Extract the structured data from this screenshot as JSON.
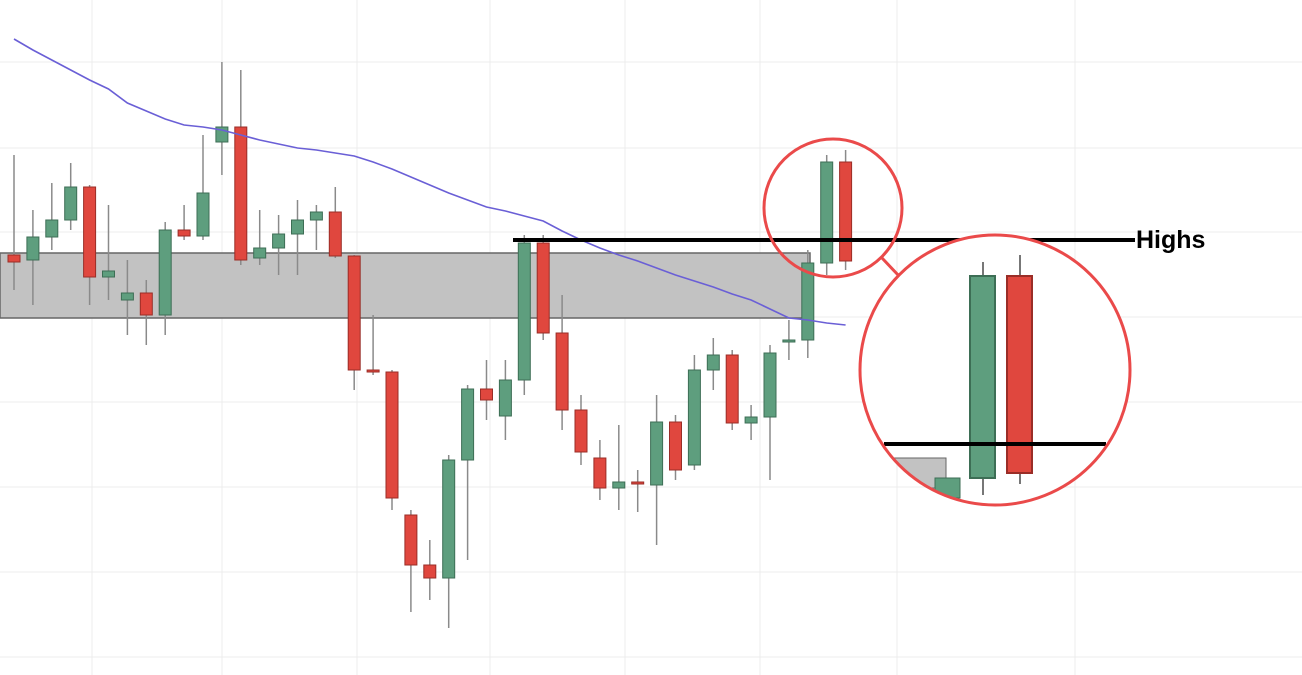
{
  "chart_data": {
    "type": "candlestick",
    "ylim": [
      0,
      675
    ],
    "up_color": "#5e9e7e",
    "down_color": "#e0473e",
    "candles": {
      "open": [
        420,
        415,
        438,
        455,
        488,
        398,
        375,
        382,
        360,
        445,
        439,
        533,
        548,
        417,
        427,
        441,
        455,
        463,
        419,
        305,
        303,
        160,
        110,
        97,
        215,
        286,
        259,
        295,
        432,
        342,
        265,
        217,
        187,
        193,
        190,
        253,
        210,
        305,
        320,
        252,
        258,
        333,
        335,
        412,
        513
      ],
      "high": [
        520,
        465,
        492,
        512,
        490,
        470,
        415,
        395,
        453,
        470,
        540,
        613,
        605,
        465,
        460,
        475,
        470,
        488,
        420,
        360,
        305,
        165,
        135,
        220,
        290,
        315,
        315,
        440,
        440,
        380,
        280,
        235,
        250,
        205,
        280,
        260,
        320,
        337,
        325,
        270,
        330,
        355,
        425,
        520,
        525
      ],
      "low": [
        385,
        370,
        425,
        445,
        370,
        375,
        340,
        330,
        340,
        435,
        435,
        500,
        410,
        410,
        400,
        400,
        425,
        417,
        285,
        300,
        165,
        63,
        75,
        47,
        115,
        255,
        235,
        280,
        335,
        245,
        210,
        175,
        165,
        163,
        130,
        195,
        205,
        285,
        245,
        235,
        195,
        315,
        317,
        400,
        405
      ],
      "close": [
        413,
        438,
        455,
        488,
        398,
        404,
        382,
        360,
        445,
        439,
        482,
        548,
        415,
        427,
        441,
        455,
        463,
        419,
        305,
        303,
        177,
        110,
        97,
        215,
        286,
        275,
        295,
        432,
        342,
        265,
        223,
        187,
        193,
        191,
        253,
        205,
        305,
        320,
        252,
        258,
        322,
        335,
        412,
        513,
        414
      ]
    },
    "moving_average": {
      "color": "#6a5fd6",
      "values": [
        636,
        625,
        615,
        605,
        595,
        586,
        572,
        564,
        556,
        550,
        548,
        545,
        540,
        535,
        531,
        527,
        525,
        522,
        519,
        513,
        506,
        498,
        490,
        482,
        475,
        468,
        464,
        459,
        454,
        444,
        435,
        427,
        420,
        414,
        407,
        400,
        394,
        388,
        381,
        375,
        366,
        357,
        355,
        352,
        350
      ]
    },
    "zone": {
      "values": [
        357,
        422
      ],
      "color": "#c2c2c2"
    },
    "annotations": [
      {
        "text": "Highs",
        "value": 435
      }
    ]
  }
}
